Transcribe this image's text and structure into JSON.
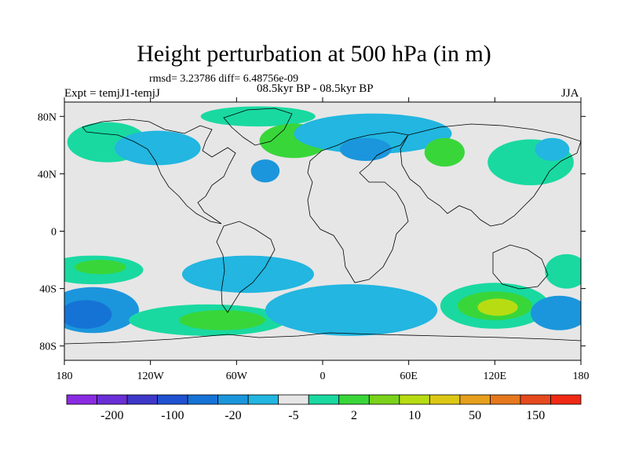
{
  "title": "Height perturbation at 500 hPa (in m)",
  "stats": "rmsd= 3.23786 diff= 6.48756e-09",
  "experiment": "Expt = temjJ1-temjJ",
  "period": "08.5kyr BP - 08.5kyr BP",
  "season": "JJA",
  "y_axis_labels": [
    "80N",
    "40N",
    "0",
    "40S",
    "80S"
  ],
  "x_axis_labels": [
    "180",
    "120W",
    "60W",
    "0",
    "60E",
    "120E",
    "180"
  ],
  "colorbar": {
    "colors": [
      "#8a2be2",
      "#6a2fd6",
      "#3d38c8",
      "#1f52d0",
      "#1673d6",
      "#1b96dc",
      "#22b6e0",
      "#e6e6e6",
      "#19d9a1",
      "#39d63a",
      "#7ad21a",
      "#b8dc12",
      "#dcc814",
      "#e6a01e",
      "#e6781e",
      "#e64a1e",
      "#f02a14"
    ],
    "labels": [
      "-200",
      "-100",
      "-20",
      "-5",
      "2",
      "10",
      "50",
      "150"
    ]
  },
  "map": {
    "background_color": "#e6e6e6",
    "projection": "cylindrical equidistant",
    "blobs": [
      {
        "lon": -150,
        "lat": 62,
        "rx": 28,
        "ry": 14,
        "color": "#19d9a1"
      },
      {
        "lon": -115,
        "lat": 58,
        "rx": 30,
        "ry": 12,
        "color": "#22b6e0"
      },
      {
        "lon": -45,
        "lat": 80,
        "rx": 40,
        "ry": 7,
        "color": "#19d9a1"
      },
      {
        "lon": -20,
        "lat": 63,
        "rx": 24,
        "ry": 12,
        "color": "#39d63a"
      },
      {
        "lon": -40,
        "lat": 42,
        "rx": 10,
        "ry": 8,
        "color": "#1b96dc"
      },
      {
        "lon": 35,
        "lat": 68,
        "rx": 55,
        "ry": 14,
        "color": "#22b6e0"
      },
      {
        "lon": 30,
        "lat": 57,
        "rx": 18,
        "ry": 8,
        "color": "#1b96dc"
      },
      {
        "lon": 85,
        "lat": 55,
        "rx": 14,
        "ry": 10,
        "color": "#39d63a"
      },
      {
        "lon": 145,
        "lat": 48,
        "rx": 30,
        "ry": 16,
        "color": "#19d9a1"
      },
      {
        "lon": 160,
        "lat": 57,
        "rx": 12,
        "ry": 8,
        "color": "#22b6e0"
      },
      {
        "lon": -160,
        "lat": -27,
        "rx": 35,
        "ry": 10,
        "color": "#19d9a1"
      },
      {
        "lon": -155,
        "lat": -25,
        "rx": 18,
        "ry": 5,
        "color": "#39d63a"
      },
      {
        "lon": -160,
        "lat": -55,
        "rx": 32,
        "ry": 16,
        "color": "#1b96dc"
      },
      {
        "lon": -165,
        "lat": -58,
        "rx": 18,
        "ry": 10,
        "color": "#1673d6"
      },
      {
        "lon": -52,
        "lat": -30,
        "rx": 46,
        "ry": 13,
        "color": "#22b6e0"
      },
      {
        "lon": -80,
        "lat": -62,
        "rx": 55,
        "ry": 11,
        "color": "#19d9a1"
      },
      {
        "lon": -70,
        "lat": -62,
        "rx": 30,
        "ry": 7,
        "color": "#39d63a"
      },
      {
        "lon": 20,
        "lat": -55,
        "rx": 60,
        "ry": 18,
        "color": "#22b6e0"
      },
      {
        "lon": 120,
        "lat": -52,
        "rx": 38,
        "ry": 16,
        "color": "#19d9a1"
      },
      {
        "lon": 120,
        "lat": -52,
        "rx": 26,
        "ry": 10,
        "color": "#39d63a"
      },
      {
        "lon": 122,
        "lat": -53,
        "rx": 14,
        "ry": 6,
        "color": "#b8dc12"
      },
      {
        "lon": 165,
        "lat": -57,
        "rx": 20,
        "ry": 12,
        "color": "#1b96dc"
      },
      {
        "lon": 170,
        "lat": -28,
        "rx": 15,
        "ry": 12,
        "color": "#19d9a1"
      }
    ]
  }
}
